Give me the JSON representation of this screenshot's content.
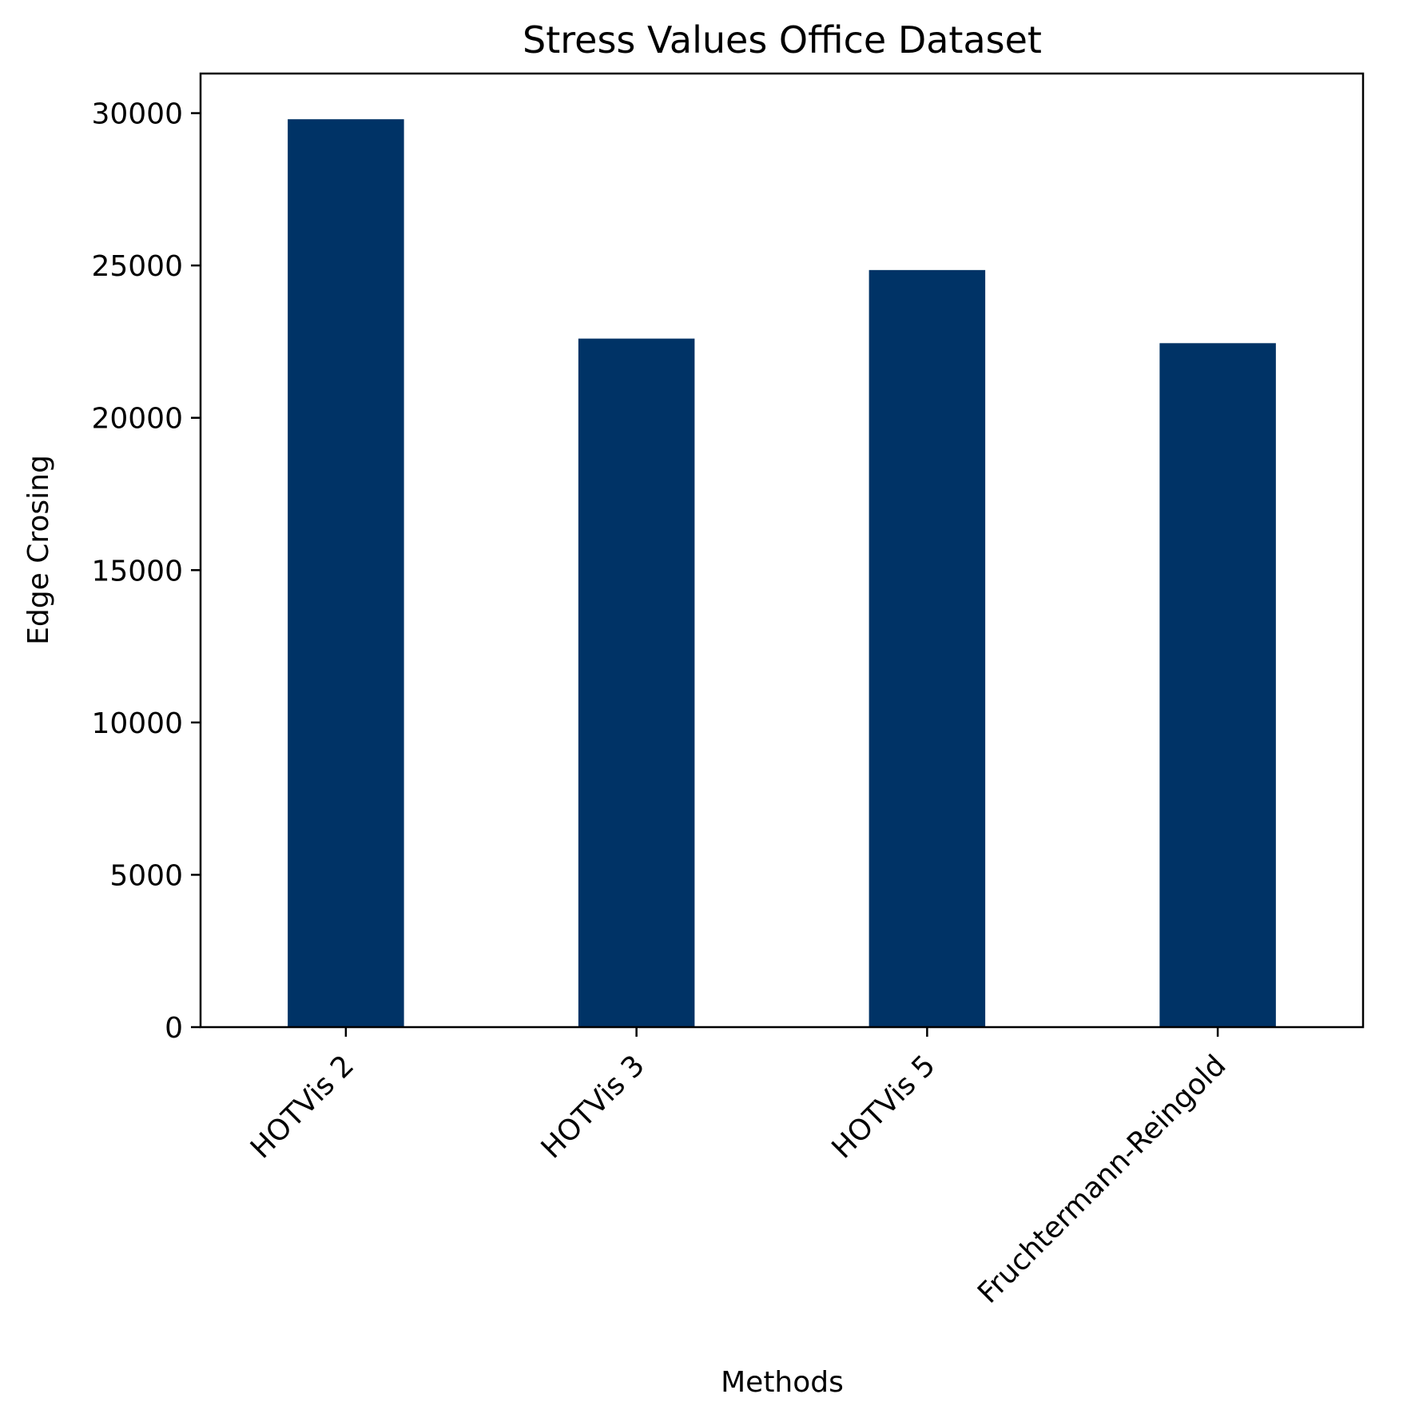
{
  "chart_data": {
    "type": "bar",
    "title": "Stress Values Office Dataset",
    "xlabel": "Methods",
    "ylabel": "Edge Crosing",
    "categories": [
      "HOTVis 2",
      "HOTVis 3",
      "HOTVis 5",
      "Fruchtermann-Reingold"
    ],
    "values": [
      29800,
      22600,
      24850,
      22450
    ],
    "ylim": [
      0,
      31300
    ],
    "yticks": [
      0,
      5000,
      10000,
      15000,
      20000,
      25000,
      30000
    ],
    "ytick_labels": [
      "0",
      "5000",
      "10000",
      "15000",
      "20000",
      "25000",
      "30000"
    ],
    "xtick_rotation": 45,
    "grid": false,
    "legend": false,
    "bar_color": "#003366"
  }
}
